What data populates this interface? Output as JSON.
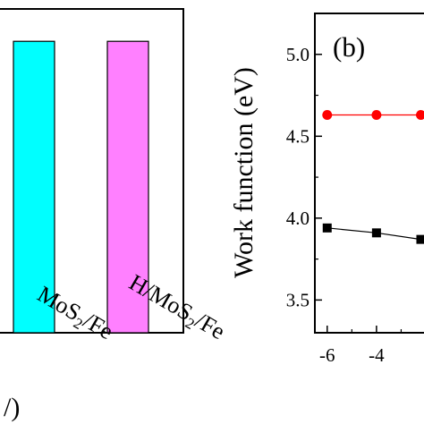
{
  "chart_data": [
    {
      "type": "bar",
      "categories": [
        "MoS2/Fe",
        "H/MoS2/Fe"
      ],
      "category_labels": [
        {
          "prefix": "",
          "base": "MoS",
          "sub": "2",
          "suffix": "/Fe"
        },
        {
          "prefix": "H/",
          "base": "MoS",
          "sub": "2",
          "suffix": "/Fe"
        }
      ],
      "values": [
        0.9,
        0.9
      ],
      "colors": [
        "#00ffff",
        "#ff80ff"
      ],
      "partial_label": "/)",
      "ylim": [
        0,
        1
      ]
    },
    {
      "type": "scatter",
      "panel_label": "(b)",
      "ylabel": "Work function (eV)",
      "xlim": [
        -6.5,
        -2
      ],
      "ylim": [
        3.3,
        5.25
      ],
      "xticks": [
        -6,
        -4
      ],
      "yticks": [
        3.5,
        4.0,
        4.5,
        5.0
      ],
      "ytick_labels": [
        "3.5",
        "4.0",
        "4.5",
        "5.0"
      ],
      "series": [
        {
          "marker": "circle",
          "color": "#ff0000",
          "x": [
            -6,
            -4,
            -2.2
          ],
          "y": [
            4.63,
            4.63,
            4.63
          ]
        },
        {
          "marker": "square",
          "color": "#000000",
          "x": [
            -6,
            -4,
            -2.2
          ],
          "y": [
            3.94,
            3.91,
            3.87
          ]
        }
      ]
    }
  ]
}
